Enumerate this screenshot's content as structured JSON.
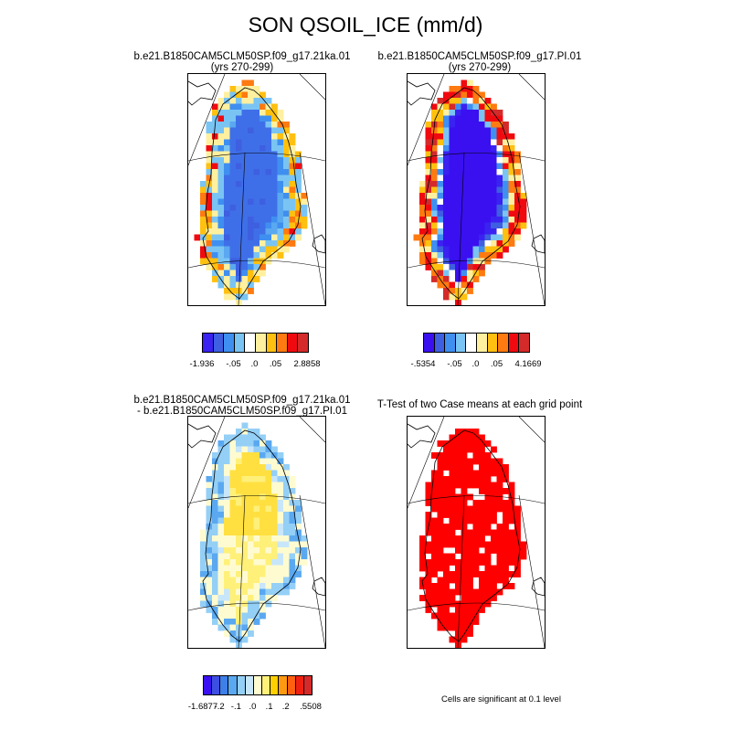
{
  "figure": {
    "title": "SON QSOIL_ICE (mm/d)",
    "footnote": "Cells are significant at 0.1 level"
  },
  "panels": [
    {
      "id": "case1",
      "title_lines": [
        "b.e21.B1850CAM5CLM50SP.f09_g17.21ka.01",
        "(yrs 270-299)"
      ],
      "field_description": "QSOIL_ICE over Greenland, case 1",
      "colorbar": {
        "colors": [
          "#3a22f0",
          "#3d5fe0",
          "#3f8ff0",
          "#7ac4f4",
          "#ffffff",
          "#fff0a0",
          "#ffc010",
          "#ff7a10",
          "#f00a10",
          "#d42a2a"
        ],
        "tick_labels": [
          "-1.936",
          "-.05",
          ".0",
          ".05",
          "2.8858"
        ]
      }
    },
    {
      "id": "case2",
      "title_lines": [
        "b.e21.B1850CAM5CLM50SP.f09_g17.PI.01",
        "(yrs 270-299)"
      ],
      "field_description": "QSOIL_ICE over Greenland, case 2",
      "colorbar": {
        "colors": [
          "#3a10f0",
          "#3d5fe0",
          "#3f8ff0",
          "#7ac4f4",
          "#ffffff",
          "#fff0a0",
          "#ffc010",
          "#ff7a10",
          "#f00a10",
          "#d42a2a"
        ],
        "tick_labels": [
          "-.5354",
          "-.05",
          ".0",
          ".05",
          "4.1669"
        ]
      }
    },
    {
      "id": "difference",
      "title_lines": [
        "b.e21.B1850CAM5CLM50SP.f09_g17.21ka.01",
        "- b.e21.B1850CAM5CLM50SP.f09_g17.PI.01"
      ],
      "field_description": "Difference of the two cases",
      "colorbar": {
        "colors": [
          "#3a10f0",
          "#3d4fe0",
          "#3f7fe8",
          "#5aa8f0",
          "#94cff6",
          "#c8e6fa",
          "#fffbd0",
          "#fff07a",
          "#ffd000",
          "#ff9a10",
          "#ff6010",
          "#f02010",
          "#d42a2a"
        ],
        "tick_labels": [
          "-1.6877",
          "-.2",
          "-.1",
          ".0",
          ".1",
          ".2",
          ".5508"
        ]
      }
    },
    {
      "id": "ttest",
      "title_lines": [
        "T-Test of two Case means at each grid point"
      ],
      "field_description": "Significance mask",
      "colorbar": null
    }
  ],
  "colors": {
    "significant": "#ff0000",
    "land_outline": "#000000",
    "graticule": "#000000"
  }
}
